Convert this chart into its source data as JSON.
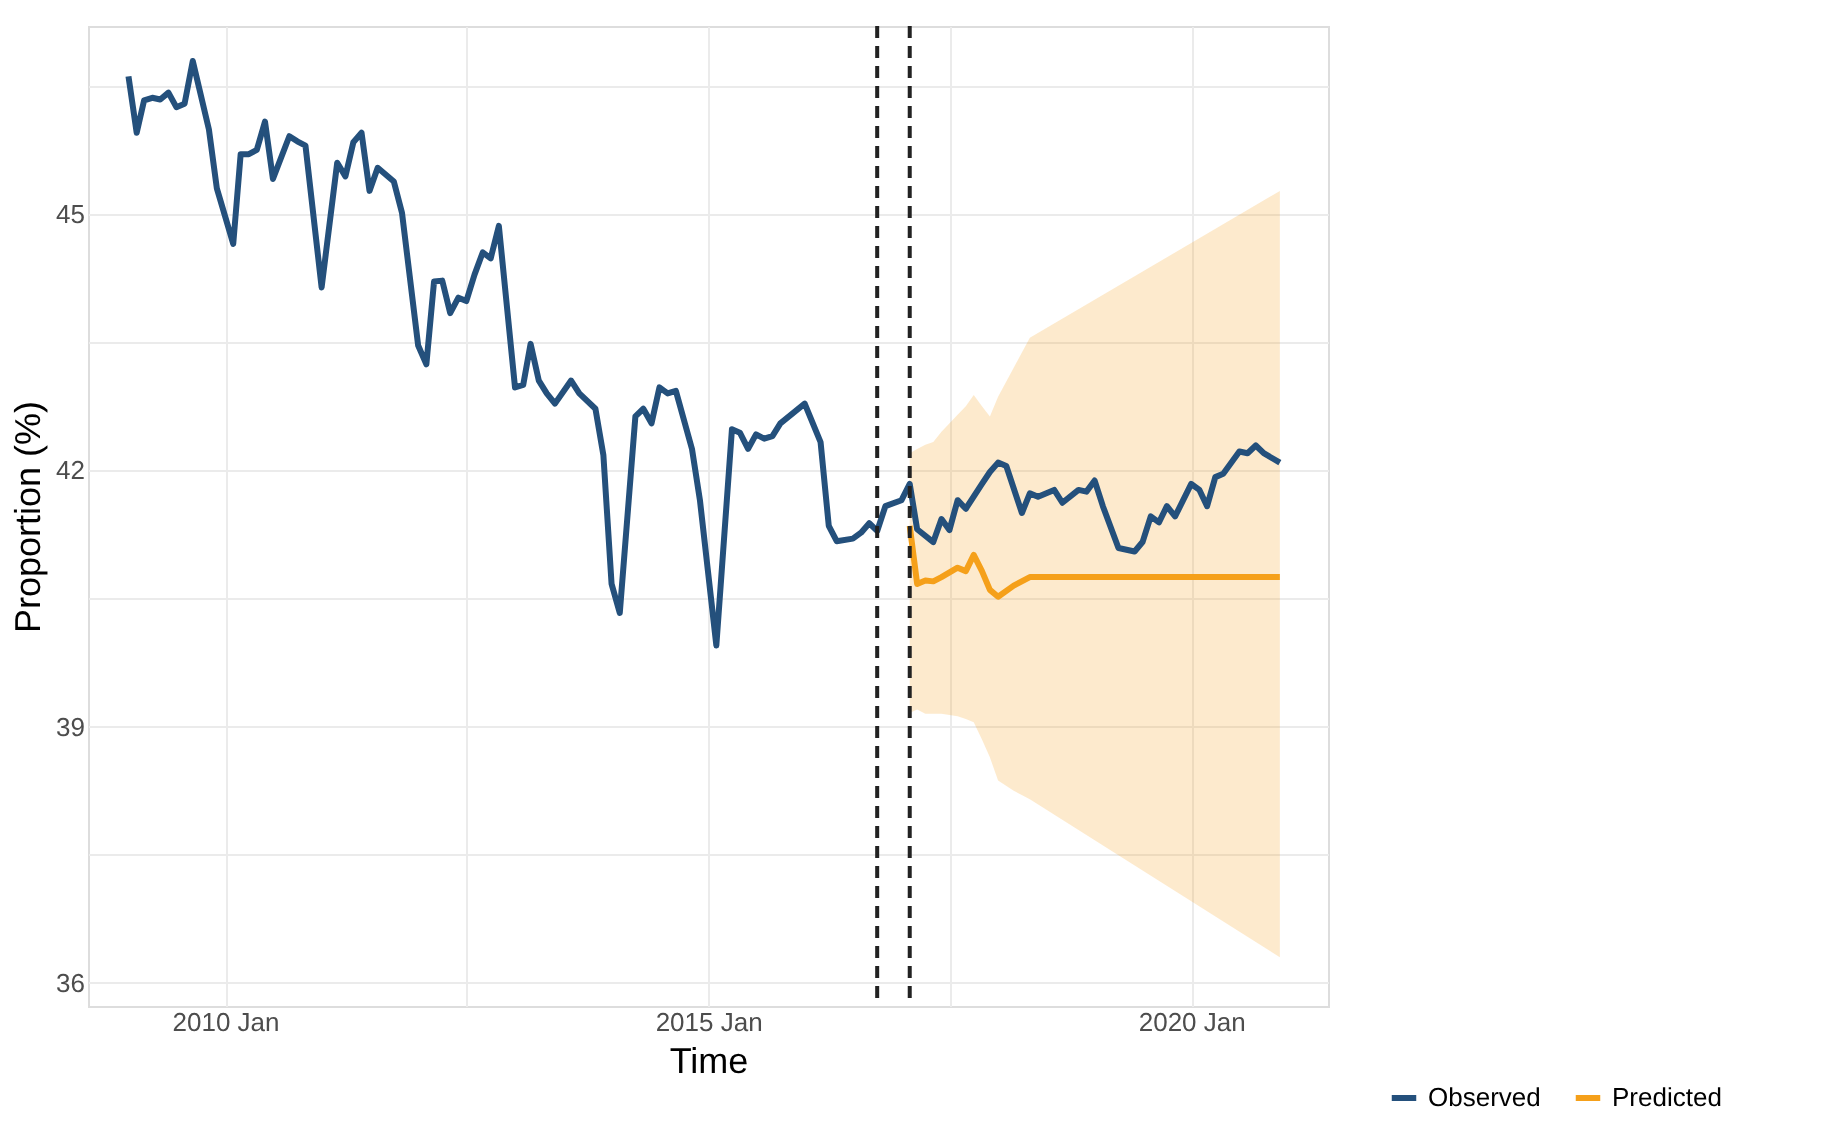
{
  "chart_data": {
    "type": "line",
    "xlabel": "Time",
    "ylabel": "Proportion (%)",
    "xlim": [
      "2008-08",
      "2021-06"
    ],
    "ylim": [
      35.73,
      47.2
    ],
    "xticks": [
      {
        "value": "2010-01",
        "label": "2010 Jan"
      },
      {
        "value": "2012-07",
        "label": null
      },
      {
        "value": "2015-01",
        "label": "2015 Jan"
      },
      {
        "value": "2017-07",
        "label": null
      },
      {
        "value": "2020-01",
        "label": "2020 Jan"
      }
    ],
    "yticks": [
      36,
      {
        "value": 37.5,
        "label": null
      },
      39,
      {
        "value": 40.5,
        "label": null
      },
      42,
      {
        "value": 43.5,
        "label": null
      },
      45,
      {
        "value": 46.5,
        "label": null
      }
    ],
    "grid": true,
    "legend": "bottom right",
    "line_style": "solid",
    "marker": "none",
    "ref_lines": [
      {
        "axis": "x",
        "value": "2016-10",
        "color": "#222222",
        "line_style": "dashed"
      },
      {
        "axis": "x",
        "value": "2017-02",
        "color": "#222222",
        "line_style": "dashed"
      }
    ],
    "series": [
      {
        "name": "Observed",
        "color": "#24507c",
        "x": [
          "2009-01",
          "2009-02",
          "2009-03",
          "2009-04",
          "2009-05",
          "2009-06",
          "2009-07",
          "2009-08",
          "2009-09",
          "2009-11",
          "2009-12",
          "2010-02",
          "2010-03",
          "2010-04",
          "2010-05",
          "2010-06",
          "2010-07",
          "2010-09",
          "2010-10",
          "2010-11",
          "2011-01",
          "2011-03",
          "2011-04",
          "2011-05",
          "2011-06",
          "2011-07",
          "2011-08",
          "2011-10",
          "2011-11",
          "2012-01",
          "2012-02",
          "2012-03",
          "2012-04",
          "2012-05",
          "2012-06",
          "2012-07",
          "2012-08",
          "2012-09",
          "2012-10",
          "2012-11",
          "2013-01",
          "2013-02",
          "2013-03",
          "2013-04",
          "2013-05",
          "2013-06",
          "2013-08",
          "2013-09",
          "2013-11",
          "2013-12",
          "2014-01",
          "2014-02",
          "2014-04",
          "2014-05",
          "2014-06",
          "2014-07",
          "2014-08",
          "2014-09",
          "2014-11",
          "2014-12",
          "2015-02",
          "2015-04",
          "2015-05",
          "2015-06",
          "2015-07",
          "2015-08",
          "2015-09",
          "2015-10",
          "2016-01",
          "2016-03",
          "2016-04",
          "2016-05",
          "2016-07",
          "2016-08",
          "2016-09",
          "2016-10",
          "2016-11",
          "2017-01",
          "2017-02",
          "2017-03",
          "2017-05",
          "2017-06",
          "2017-07",
          "2017-08",
          "2017-09",
          "2017-11",
          "2017-12",
          "2018-01",
          "2018-02",
          "2018-04",
          "2018-05",
          "2018-06",
          "2018-08",
          "2018-09",
          "2018-11",
          "2018-12",
          "2019-01",
          "2019-02",
          "2019-04",
          "2019-06",
          "2019-07",
          "2019-08",
          "2019-09",
          "2019-10",
          "2019-11",
          "2020-01",
          "2020-02",
          "2020-03",
          "2020-04",
          "2020-05",
          "2020-07",
          "2020-08",
          "2020-09",
          "2020-10",
          "2020-12"
        ],
        "values": [
          46.61,
          45.95,
          46.33,
          46.36,
          46.34,
          46.42,
          46.25,
          46.29,
          46.79,
          45.99,
          45.3,
          44.65,
          45.7,
          45.7,
          45.75,
          46.08,
          45.41,
          45.91,
          45.85,
          45.8,
          44.14,
          45.6,
          45.44,
          45.84,
          45.95,
          45.27,
          45.54,
          45.38,
          45.01,
          43.46,
          43.24,
          44.21,
          44.22,
          43.84,
          44.02,
          43.98,
          44.29,
          44.55,
          44.48,
          44.86,
          42.97,
          43.0,
          43.48,
          43.05,
          42.9,
          42.78,
          43.05,
          42.9,
          42.72,
          42.18,
          40.67,
          40.33,
          42.63,
          42.72,
          42.55,
          42.97,
          42.9,
          42.93,
          42.25,
          41.65,
          39.95,
          42.48,
          42.44,
          42.25,
          42.42,
          42.37,
          42.4,
          42.55,
          42.78,
          42.33,
          41.35,
          41.17,
          41.2,
          41.27,
          41.38,
          41.29,
          41.58,
          41.65,
          41.84,
          41.31,
          41.16,
          41.43,
          41.3,
          41.65,
          41.55,
          41.84,
          41.98,
          42.09,
          42.05,
          41.5,
          41.73,
          41.69,
          41.77,
          41.62,
          41.77,
          41.75,
          41.88,
          41.58,
          41.09,
          41.05,
          41.16,
          41.46,
          41.39,
          41.58,
          41.46,
          41.84,
          41.77,
          41.58,
          41.92,
          41.96,
          42.22,
          42.2,
          42.29,
          42.2,
          42.09
        ]
      },
      {
        "name": "Predicted",
        "color": "#f5a01a",
        "x": [
          "2017-02",
          "2017-03",
          "2017-04",
          "2017-05",
          "2017-06",
          "2017-08",
          "2017-09",
          "2017-10",
          "2017-11",
          "2017-12",
          "2018-01",
          "2018-03",
          "2018-05",
          "2020-12"
        ],
        "values": [
          41.35,
          40.67,
          40.71,
          40.7,
          40.75,
          40.86,
          40.82,
          41.01,
          40.82,
          40.6,
          40.52,
          40.65,
          40.75,
          40.75
        ],
        "lower": [
          39.16,
          39.2,
          39.15,
          39.15,
          39.15,
          39.12,
          39.09,
          39.05,
          38.85,
          38.64,
          38.37,
          38.25,
          38.15,
          36.3
        ],
        "upper": [
          42.2,
          42.25,
          42.3,
          42.33,
          42.45,
          42.65,
          42.75,
          42.88,
          42.75,
          42.63,
          42.86,
          43.2,
          43.55,
          45.27
        ]
      }
    ]
  }
}
